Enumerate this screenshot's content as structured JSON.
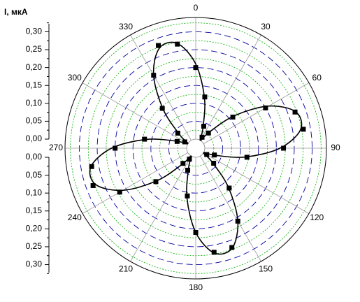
{
  "chart_data": {
    "type": "polar",
    "y_label": "I, мкА",
    "rlim": [
      0,
      0.34
    ],
    "yticks": [
      {
        "value": 0,
        "label": "0,00"
      },
      {
        "value": 0.05,
        "label": "0,05"
      },
      {
        "value": 0.1,
        "label": "0,10"
      },
      {
        "value": 0.15,
        "label": "0,15"
      },
      {
        "value": 0.2,
        "label": "0,20"
      },
      {
        "value": 0.25,
        "label": "0,25"
      },
      {
        "value": 0.3,
        "label": "0,30"
      }
    ],
    "yticks_lower": [
      {
        "value": 0,
        "label": "0,00"
      },
      {
        "value": 0.05,
        "label": "0,05"
      },
      {
        "value": 0.1,
        "label": "0,10"
      },
      {
        "value": 0.15,
        "label": "0,15"
      },
      {
        "value": 0.2,
        "label": "0,20"
      },
      {
        "value": 0.25,
        "label": "0,25"
      },
      {
        "value": 0.3,
        "label": "0,30"
      }
    ],
    "minor_rticks": [
      0.025,
      0.075,
      0.125,
      0.175,
      0.225,
      0.275,
      0.325
    ],
    "theta_ticks": [
      0,
      30,
      60,
      90,
      120,
      150,
      180,
      210,
      240,
      270,
      300,
      330
    ],
    "grid": true,
    "color": "#000000",
    "points": {
      "theta": [
        0,
        10,
        20,
        30,
        40,
        50,
        60,
        70,
        80,
        90,
        100,
        110,
        120,
        130,
        140,
        150,
        160,
        170,
        180,
        190,
        200,
        210,
        220,
        230,
        240,
        250,
        260,
        270,
        280,
        290,
        300,
        310,
        320,
        330,
        340,
        350
      ],
      "r": [
        0.2,
        0.12,
        0.04,
        0.01,
        0.03,
        0.11,
        0.2,
        0.27,
        0.28,
        0.22,
        0.12,
        0.03,
        0.01,
        0.04,
        0.12,
        0.21,
        0.27,
        0.27,
        0.21,
        0.11,
        0.04,
        0.01,
        0.03,
        0.12,
        0.22,
        0.28,
        0.27,
        0.2,
        0.12,
        0.03,
        0.01,
        0.04,
        0.12,
        0.21,
        0.28,
        0.27
      ]
    },
    "fit": {
      "theta": [
        0,
        10,
        20,
        30,
        40,
        50,
        60,
        70,
        80,
        90,
        100,
        110,
        120,
        130,
        140,
        150,
        160,
        170,
        180,
        190,
        200,
        210,
        220,
        230,
        240,
        250,
        260,
        270,
        280,
        290,
        300,
        310,
        320,
        330,
        340,
        350
      ],
      "r": [
        0.21,
        0.116,
        0.033,
        0,
        0.033,
        0.116,
        0.21,
        0.272,
        0.272,
        0.21,
        0.116,
        0.033,
        0,
        0.033,
        0.116,
        0.21,
        0.272,
        0.272,
        0.21,
        0.116,
        0.033,
        0,
        0.033,
        0.116,
        0.21,
        0.272,
        0.272,
        0.21,
        0.116,
        0.033,
        0,
        0.033,
        0.116,
        0.21,
        0.272,
        0.272
      ]
    }
  }
}
